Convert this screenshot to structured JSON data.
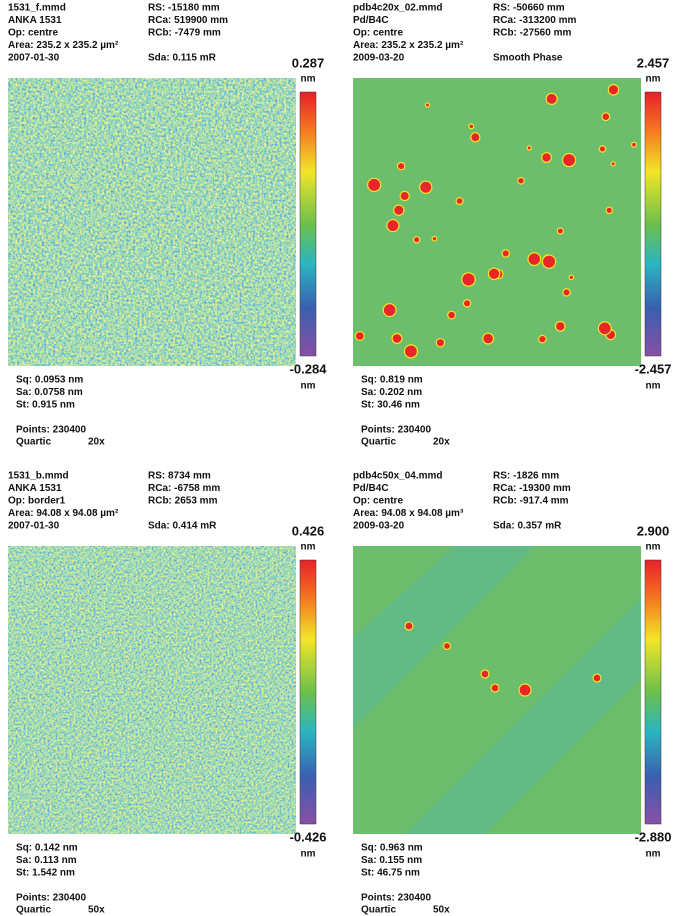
{
  "panels": [
    {
      "header": [
        {
          "left": "1531_f.mmd",
          "right": "RS:  -15180 mm"
        },
        {
          "left": "ANKA 1531",
          "right": "RCa: 519900 mm"
        },
        {
          "left": "Op: centre",
          "right": "RCb: -7479 mm"
        },
        {
          "left": "Area: 235.2 x 235.2 µm²"
        },
        {
          "left": "2007-01-30",
          "right": "Sda: 0.115 mR"
        }
      ],
      "scale": {
        "max": "0.287",
        "min": "-0.284",
        "unit": "nm"
      },
      "stats": [
        "Sq:  0.0953 nm",
        "Sa:  0.0758 nm",
        "St:   0.915 nm"
      ],
      "points": "Points: 230400",
      "method": "Quartic",
      "magnification": "20x"
    },
    {
      "header": [
        {
          "left": "pdb4c20x_02.mmd",
          "right": "RS:  -50660 mm"
        },
        {
          "left": "Pd/B4C",
          "right": "RCa: -313200 mm"
        },
        {
          "left": "Op: centre",
          "right": "RCb: -27560 mm"
        },
        {
          "left": "Area: 235.2 x 235.2 µm²"
        },
        {
          "left": "2009-03-20",
          "right": "Smooth Phase"
        }
      ],
      "scale": {
        "max": "2.457",
        "min": "-2.457",
        "unit": "nm"
      },
      "stats": [
        "Sq:  0.819 nm",
        "Sa:  0.202 nm",
        "St:   30.46 nm"
      ],
      "points": "Points: 230400",
      "method": "Quartic",
      "magnification": "20x"
    },
    {
      "header": [
        {
          "left": "1531_b.mmd",
          "right": "RS:  8734 mm"
        },
        {
          "left": "ANKA 1531",
          "right": "RCa: -6758 mm"
        },
        {
          "left": "Op: border1",
          "right": "RCb: 2653 mm"
        },
        {
          "left": "Area: 94.08 x 94.08 µm²"
        },
        {
          "left": "2007-01-30",
          "right": "Sda: 0.414 mR"
        }
      ],
      "scale": {
        "max": "0.426",
        "min": "-0.426",
        "unit": "nm"
      },
      "stats": [
        "Sq:  0.142 nm",
        "Sa:  0.113 nm",
        "St:   1.542 nm"
      ],
      "points": "Points: 230400",
      "method": "Quartic",
      "magnification": "50x"
    },
    {
      "header": [
        {
          "left": "pdb4c50x_04.mmd",
          "right": "RS:  -1826 mm"
        },
        {
          "left": "Pd/B4C",
          "right": "RCa: -19300 mm"
        },
        {
          "left": "Op: centre",
          "right": "RCb: -917.4 mm"
        },
        {
          "left": "Area: 94.08 x 94.08 µm³"
        },
        {
          "left": "2009-03-20",
          "right": "Sda: 0.357 mR"
        }
      ],
      "scale": {
        "max": "2.900",
        "min": "-2.880",
        "unit": "nm"
      },
      "stats": [
        "Sq:  0.963 nm",
        "Sa:  0.155 nm",
        "St:   46.75 nm"
      ],
      "points": "Points: 230400",
      "method": "Quartic",
      "magnification": "50x"
    }
  ]
}
